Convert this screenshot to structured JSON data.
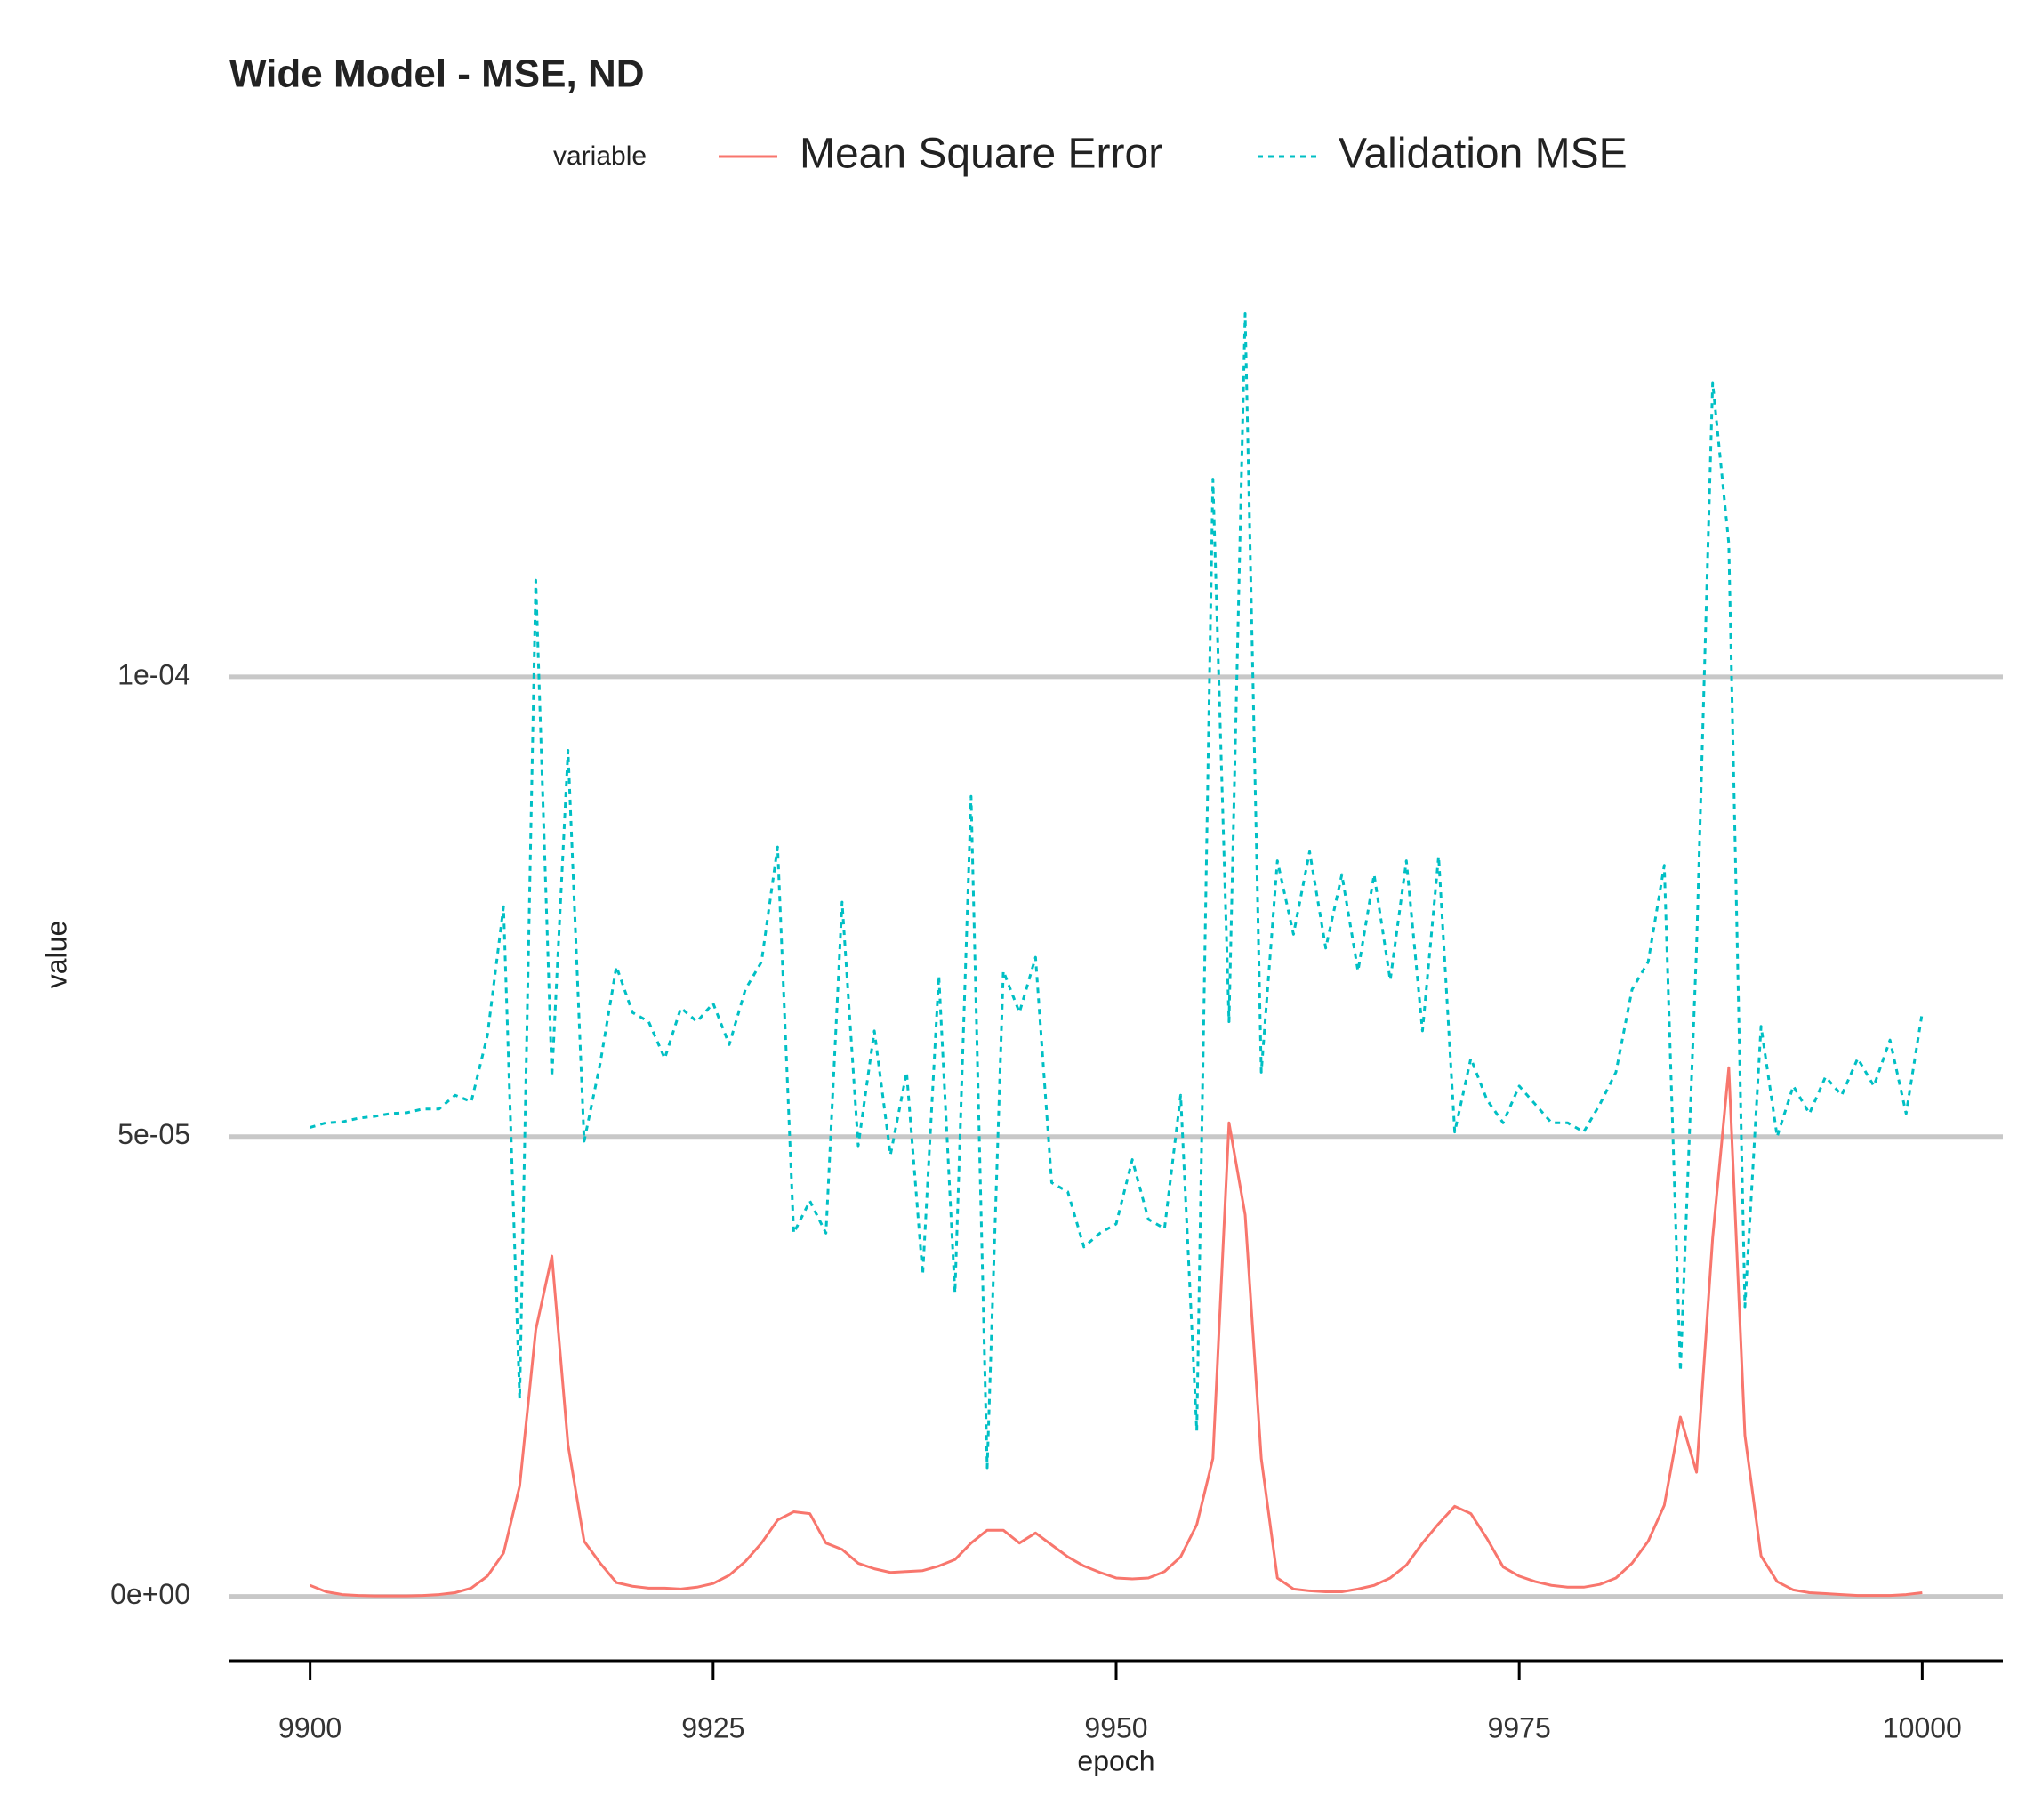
{
  "chart_data": {
    "type": "line",
    "title": "Wide Model - MSE, ND",
    "xlabel": "epoch",
    "ylabel": "value",
    "legend_title": "variable",
    "x": [
      9900,
      9901,
      9902,
      9903,
      9904,
      9905,
      9906,
      9907,
      9908,
      9909,
      9910,
      9911,
      9912,
      9913,
      9914,
      9915,
      9916,
      9917,
      9918,
      9919,
      9920,
      9921,
      9922,
      9923,
      9924,
      9925,
      9926,
      9927,
      9928,
      9929,
      9930,
      9931,
      9932,
      9933,
      9934,
      9935,
      9936,
      9937,
      9938,
      9939,
      9940,
      9941,
      9942,
      9943,
      9944,
      9945,
      9946,
      9947,
      9948,
      9949,
      9950,
      9951,
      9952,
      9953,
      9954,
      9955,
      9956,
      9957,
      9958,
      9959,
      9960,
      9961,
      9962,
      9963,
      9964,
      9965,
      9966,
      9967,
      9968,
      9969,
      9970,
      9971,
      9972,
      9973,
      9974,
      9975,
      9976,
      9977,
      9978,
      9979,
      9980,
      9981,
      9982,
      9983,
      9984,
      9985,
      9986,
      9987,
      9988,
      9989,
      9990,
      9991,
      9992,
      9993,
      9994,
      9995,
      9996,
      9997,
      9998,
      9999,
      10000
    ],
    "series": [
      {
        "name": "Mean Square Error",
        "color": "#F8766D",
        "dash": false,
        "values": [
          1.2e-06,
          5e-07,
          2e-07,
          1e-07,
          5e-08,
          5e-08,
          5e-08,
          1e-07,
          2e-07,
          4e-07,
          9e-07,
          2.2e-06,
          4.7e-06,
          1.2e-05,
          2.9e-05,
          3.7e-05,
          1.65e-05,
          6e-06,
          3.6e-06,
          1.5e-06,
          1.1e-06,
          9e-07,
          9e-07,
          8e-07,
          1e-06,
          1.4e-06,
          2.3e-06,
          3.8e-06,
          5.8e-06,
          8.3e-06,
          9.2e-06,
          9e-06,
          5.8e-06,
          5.1e-06,
          3.6e-06,
          3e-06,
          2.6e-06,
          2.7e-06,
          2.8e-06,
          3.3e-06,
          4e-06,
          5.8e-06,
          7.2e-06,
          7.2e-06,
          5.8e-06,
          6.9e-06,
          5.6e-06,
          4.3e-06,
          3.3e-06,
          2.6e-06,
          2e-06,
          1.9e-06,
          2e-06,
          2.7e-06,
          4.3e-06,
          7.8e-06,
          1.5e-05,
          5.15e-05,
          4.15e-05,
          1.5e-05,
          2e-06,
          8e-07,
          6e-07,
          5e-07,
          5e-07,
          8e-07,
          1.2e-06,
          2e-06,
          3.4e-06,
          5.8e-06,
          7.9e-06,
          9.8e-06,
          9e-06,
          6.3e-06,
          3.2e-06,
          2.2e-06,
          1.6e-06,
          1.2e-06,
          1e-06,
          1e-06,
          1.3e-06,
          2e-06,
          3.6e-06,
          6e-06,
          9.9e-06,
          1.95e-05,
          1.35e-05,
          3.9e-05,
          5.75e-05,
          1.75e-05,
          4.4e-06,
          1.6e-06,
          7e-07,
          4e-07,
          3e-07,
          2e-07,
          1e-07,
          1e-07,
          1e-07,
          2e-07,
          4e-07
        ]
      },
      {
        "name": "Validation MSE",
        "color": "#00BFC4",
        "dash": true,
        "values": [
          5.1e-05,
          5.15e-05,
          5.16e-05,
          5.2e-05,
          5.22e-05,
          5.25e-05,
          5.26e-05,
          5.3e-05,
          5.3e-05,
          5.45e-05,
          5.38e-05,
          6.1e-05,
          7.5e-05,
          2.15e-05,
          0.0001105,
          5.65e-05,
          9.2e-05,
          4.95e-05,
          5.8e-05,
          6.85e-05,
          6.35e-05,
          6.25e-05,
          5.85e-05,
          6.4e-05,
          6.25e-05,
          6.45e-05,
          6e-05,
          6.6e-05,
          6.9e-05,
          8.15e-05,
          3.95e-05,
          4.3e-05,
          3.95e-05,
          7.55e-05,
          4.9e-05,
          6.15e-05,
          4.8e-05,
          5.7e-05,
          3.5e-05,
          6.75e-05,
          3.3e-05,
          8.7e-05,
          1.4e-05,
          6.8e-05,
          6.35e-05,
          6.95e-05,
          4.5e-05,
          4.4e-05,
          3.8e-05,
          3.95e-05,
          4.05e-05,
          4.75e-05,
          4.1e-05,
          4e-05,
          5.45e-05,
          1.8e-05,
          0.0001215,
          6.25e-05,
          0.0001395,
          5.7e-05,
          8e-05,
          7.2e-05,
          8.1e-05,
          7.05e-05,
          7.85e-05,
          6.8e-05,
          7.85e-05,
          6.7e-05,
          8e-05,
          6.15e-05,
          8.05e-05,
          5.05e-05,
          5.85e-05,
          5.4e-05,
          5.15e-05,
          5.55e-05,
          5.35e-05,
          5.15e-05,
          5.15e-05,
          5.05e-05,
          5.35e-05,
          5.7e-05,
          6.6e-05,
          6.9e-05,
          7.95e-05,
          2.45e-05,
          7.05e-05,
          0.000132,
          0.0001145,
          3.15e-05,
          6.2e-05,
          5e-05,
          5.55e-05,
          5.25e-05,
          5.65e-05,
          5.45e-05,
          5.85e-05,
          5.55e-05,
          6.05e-05,
          5.25e-05,
          6.35e-05
        ]
      }
    ],
    "xlim": [
      9895,
      10005
    ],
    "xticks": [
      9900,
      9925,
      9950,
      9975,
      10000
    ],
    "ylim": [
      -7e-06,
      0.000141
    ],
    "yticks": [
      {
        "value": 0,
        "label": "0e+00"
      },
      {
        "value": 5e-05,
        "label": "5e-05"
      },
      {
        "value": 0.0001,
        "label": "1e-04"
      }
    ],
    "grid": true,
    "legend_position": "top"
  }
}
